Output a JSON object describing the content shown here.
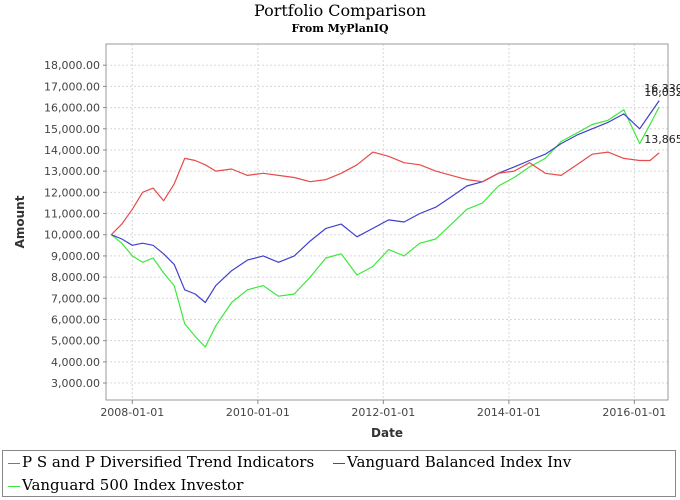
{
  "chart_data": {
    "type": "line",
    "title": "Portfolio Comparison",
    "subtitle": "From MyPlanIQ",
    "xlabel": "Date",
    "ylabel": "Amount",
    "ylim": [
      2200,
      19000
    ],
    "xlim": [
      "2007-08-01",
      "2016-07-15"
    ],
    "y_ticks": [
      "3,000.00",
      "4,000.00",
      "5,000.00",
      "6,000.00",
      "7,000.00",
      "8,000.00",
      "9,000.00",
      "10,000.00",
      "11,000.00",
      "12,000.00",
      "13,000.00",
      "14,000.00",
      "15,000.00",
      "16,000.00",
      "17,000.00",
      "18,000.00"
    ],
    "x_ticks": [
      "2008-01-01",
      "2010-01-01",
      "2012-01-01",
      "2014-01-01",
      "2016-01-01"
    ],
    "grid": true,
    "legend_position": "bottom",
    "end_labels": [
      "16,330",
      "16,032",
      "13,865"
    ],
    "series": [
      {
        "name": "P S and P Diversified Trend Indicators",
        "color": "#e84a4a",
        "dates": [
          "2007-09-01",
          "2007-11-01",
          "2008-01-01",
          "2008-03-01",
          "2008-05-01",
          "2008-07-01",
          "2008-09-01",
          "2008-11-01",
          "2009-01-01",
          "2009-03-01",
          "2009-05-01",
          "2009-08-01",
          "2009-11-01",
          "2010-02-01",
          "2010-05-01",
          "2010-08-01",
          "2010-11-01",
          "2011-02-01",
          "2011-05-01",
          "2011-08-01",
          "2011-11-01",
          "2012-02-01",
          "2012-05-01",
          "2012-08-01",
          "2012-11-01",
          "2013-02-01",
          "2013-05-01",
          "2013-08-01",
          "2013-11-01",
          "2014-02-01",
          "2014-05-01",
          "2014-08-01",
          "2014-11-01",
          "2015-02-01",
          "2015-05-01",
          "2015-08-01",
          "2015-11-01",
          "2016-02-01",
          "2016-04-01",
          "2016-05-25"
        ],
        "values": [
          10000,
          10500,
          11200,
          12000,
          12200,
          11600,
          12400,
          13600,
          13500,
          13300,
          13000,
          13100,
          12800,
          12900,
          12800,
          12700,
          12500,
          12600,
          12900,
          13300,
          13900,
          13700,
          13400,
          13300,
          13000,
          12800,
          12600,
          12500,
          12900,
          13000,
          13400,
          12900,
          12800,
          13300,
          13800,
          13900,
          13600,
          13500,
          13500,
          13865
        ]
      },
      {
        "name": "Vanguard Balanced Index Inv",
        "color": "#4040d0",
        "dates": [
          "2007-09-01",
          "2007-11-01",
          "2008-01-01",
          "2008-03-01",
          "2008-05-01",
          "2008-07-01",
          "2008-09-01",
          "2008-11-01",
          "2009-01-01",
          "2009-03-01",
          "2009-05-01",
          "2009-08-01",
          "2009-11-01",
          "2010-02-01",
          "2010-05-01",
          "2010-08-01",
          "2010-11-01",
          "2011-02-01",
          "2011-05-01",
          "2011-08-01",
          "2011-11-01",
          "2012-02-01",
          "2012-05-01",
          "2012-08-01",
          "2012-11-01",
          "2013-02-01",
          "2013-05-01",
          "2013-08-01",
          "2013-11-01",
          "2014-02-01",
          "2014-05-01",
          "2014-08-01",
          "2014-11-01",
          "2015-02-01",
          "2015-05-01",
          "2015-08-01",
          "2015-11-01",
          "2016-02-01",
          "2016-04-01",
          "2016-05-25"
        ],
        "values": [
          10000,
          9800,
          9500,
          9600,
          9500,
          9100,
          8600,
          7400,
          7200,
          6800,
          7600,
          8300,
          8800,
          9000,
          8700,
          9000,
          9700,
          10300,
          10500,
          9900,
          10300,
          10700,
          10600,
          11000,
          11300,
          11800,
          12300,
          12500,
          12900,
          13200,
          13500,
          13800,
          14300,
          14700,
          15000,
          15300,
          15700,
          15000,
          15700,
          16330
        ]
      },
      {
        "name": "Vanguard 500 Index Investor",
        "color": "#3ce83c",
        "dates": [
          "2007-09-01",
          "2007-11-01",
          "2008-01-01",
          "2008-03-01",
          "2008-05-01",
          "2008-07-01",
          "2008-09-01",
          "2008-11-01",
          "2009-01-01",
          "2009-03-01",
          "2009-05-01",
          "2009-08-01",
          "2009-11-01",
          "2010-02-01",
          "2010-05-01",
          "2010-08-01",
          "2010-11-01",
          "2011-02-01",
          "2011-05-01",
          "2011-08-01",
          "2011-11-01",
          "2012-02-01",
          "2012-05-01",
          "2012-08-01",
          "2012-11-01",
          "2013-02-01",
          "2013-05-01",
          "2013-08-01",
          "2013-11-01",
          "2014-02-01",
          "2014-05-01",
          "2014-08-01",
          "2014-11-01",
          "2015-02-01",
          "2015-05-01",
          "2015-08-01",
          "2015-11-01",
          "2016-02-01",
          "2016-04-01",
          "2016-05-25"
        ],
        "values": [
          10000,
          9600,
          9000,
          8700,
          8900,
          8200,
          7600,
          5800,
          5200,
          4700,
          5700,
          6800,
          7400,
          7600,
          7100,
          7200,
          8000,
          8900,
          9100,
          8100,
          8500,
          9300,
          9000,
          9600,
          9800,
          10500,
          11200,
          11500,
          12300,
          12700,
          13200,
          13600,
          14400,
          14800,
          15200,
          15400,
          15900,
          14300,
          15200,
          16032
        ]
      }
    ]
  }
}
